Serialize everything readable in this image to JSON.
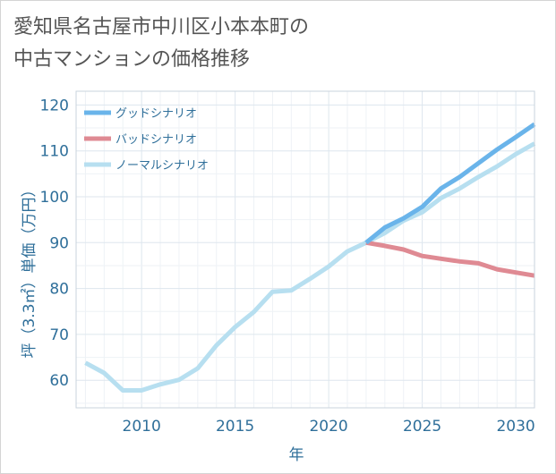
{
  "chart_data": {
    "type": "line",
    "title": "愛知県名古屋市中川区小本本町の\n中古マンションの価格推移",
    "xlabel": "年",
    "ylabel": "坪（3.3㎡）単価（万円）",
    "xlim": [
      2006.5,
      2031
    ],
    "ylim": [
      54,
      123
    ],
    "x_ticks": [
      2010,
      2015,
      2020,
      2025,
      2030
    ],
    "y_ticks": [
      60,
      70,
      80,
      90,
      100,
      110,
      120
    ],
    "grid": true,
    "legend_position": "top-left",
    "series": [
      {
        "name": "グッドシナリオ",
        "color": "#6ab4ea",
        "x": [
          2022,
          2023,
          2024,
          2025,
          2026,
          2027,
          2028,
          2029,
          2030,
          2031
        ],
        "values": [
          90.0,
          93.3,
          95.3,
          97.8,
          101.8,
          104.3,
          107.3,
          110.3,
          113.0,
          115.8
        ]
      },
      {
        "name": "バッドシナリオ",
        "color": "#df8a93",
        "x": [
          2022,
          2023,
          2024,
          2025,
          2026,
          2027,
          2028,
          2029,
          2030,
          2031
        ],
        "values": [
          90.0,
          89.3,
          88.5,
          87.1,
          86.5,
          85.9,
          85.5,
          84.2,
          83.5,
          82.8
        ]
      },
      {
        "name": "ノーマルシナリオ",
        "color": "#b7dff0",
        "x": [
          2007,
          2008,
          2009,
          2010,
          2011,
          2012,
          2013,
          2014,
          2015,
          2016,
          2017,
          2018,
          2019,
          2020,
          2021,
          2022,
          2023,
          2024,
          2025,
          2026,
          2027,
          2028,
          2029,
          2030,
          2031
        ],
        "values": [
          63.8,
          61.6,
          57.8,
          57.8,
          59.1,
          60.1,
          62.6,
          67.6,
          71.6,
          74.9,
          79.3,
          79.6,
          82.1,
          84.8,
          88.1,
          90.0,
          92.1,
          94.8,
          96.6,
          99.7,
          101.8,
          104.3,
          106.6,
          109.3,
          111.6
        ]
      }
    ]
  }
}
